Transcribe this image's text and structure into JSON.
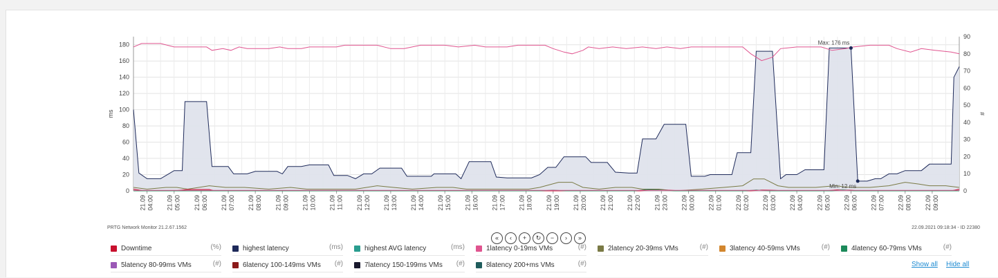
{
  "chart_data": {
    "type": "line",
    "x": [
      "21.09 04:00",
      "21.09 05:00",
      "21.09 06:00",
      "21.09 07:00",
      "21.09 08:00",
      "21.09 09:00",
      "21.09 10:00",
      "21.09 11:00",
      "21.09 12:00",
      "21.09 13:00",
      "21.09 14:00",
      "21.09 15:00",
      "21.09 16:00",
      "21.09 17:00",
      "21.09 18:00",
      "21.09 19:00",
      "21.09 20:00",
      "21.09 21:00",
      "21.09 22:00",
      "21.09 23:00",
      "22.09 00:00",
      "22.09 01:00",
      "22.09 02:00",
      "22.09 03:00",
      "22.09 04:00",
      "22.09 05:00",
      "22.09 06:00",
      "22.09 07:00",
      "22.09 08:00",
      "22.09 09:00"
    ],
    "y_left": {
      "label": "ms",
      "ylim": [
        0,
        190
      ],
      "ticks": [
        0,
        20,
        40,
        60,
        80,
        100,
        120,
        140,
        160,
        180
      ]
    },
    "y_right": {
      "label": "#",
      "ylim": [
        0,
        90
      ],
      "ticks": [
        0,
        10,
        20,
        30,
        40,
        50,
        60,
        70,
        80,
        90
      ]
    },
    "grid": true,
    "series": [
      {
        "name": "highest latency",
        "axis": "left",
        "color": "#1e2a5a",
        "fill": "#dfe3ec",
        "points": [
          [
            0.0,
            100
          ],
          [
            0.2,
            22
          ],
          [
            0.5,
            15
          ],
          [
            1.0,
            15
          ],
          [
            1.3,
            21
          ],
          [
            1.5,
            25
          ],
          [
            1.8,
            25
          ],
          [
            1.9,
            110
          ],
          [
            2.7,
            110
          ],
          [
            2.9,
            30
          ],
          [
            3.5,
            30
          ],
          [
            3.7,
            21
          ],
          [
            4.2,
            21
          ],
          [
            4.5,
            24
          ],
          [
            5.3,
            24
          ],
          [
            5.5,
            21
          ],
          [
            5.7,
            30
          ],
          [
            6.2,
            30
          ],
          [
            6.5,
            32
          ],
          [
            7.2,
            32
          ],
          [
            7.4,
            19
          ],
          [
            7.9,
            19
          ],
          [
            8.2,
            15
          ],
          [
            8.5,
            21
          ],
          [
            8.8,
            21
          ],
          [
            9.1,
            28
          ],
          [
            9.9,
            28
          ],
          [
            10.1,
            18
          ],
          [
            11.0,
            18
          ],
          [
            11.1,
            21
          ],
          [
            11.9,
            21
          ],
          [
            12.1,
            15
          ],
          [
            12.4,
            36
          ],
          [
            13.2,
            36
          ],
          [
            13.4,
            17
          ],
          [
            13.8,
            16
          ],
          [
            14.7,
            16
          ],
          [
            15.0,
            20
          ],
          [
            15.3,
            29
          ],
          [
            15.6,
            29
          ],
          [
            15.9,
            42
          ],
          [
            16.7,
            42
          ],
          [
            16.9,
            35
          ],
          [
            17.5,
            35
          ],
          [
            17.8,
            23
          ],
          [
            18.3,
            22
          ],
          [
            18.6,
            22
          ],
          [
            18.8,
            64
          ],
          [
            19.3,
            64
          ],
          [
            19.6,
            82
          ],
          [
            20.4,
            82
          ],
          [
            20.6,
            18
          ],
          [
            21.1,
            18
          ],
          [
            21.3,
            20
          ],
          [
            22.1,
            20
          ],
          [
            22.3,
            47
          ],
          [
            22.8,
            47
          ],
          [
            23.0,
            172
          ],
          [
            23.6,
            172
          ],
          [
            23.9,
            15
          ],
          [
            24.1,
            20
          ],
          [
            24.5,
            20
          ],
          [
            24.8,
            26
          ],
          [
            25.5,
            26
          ],
          [
            25.7,
            176
          ],
          [
            26.5,
            176
          ],
          [
            26.75,
            12
          ],
          [
            27.1,
            12
          ],
          [
            27.4,
            15
          ],
          [
            27.6,
            15
          ],
          [
            27.9,
            21
          ],
          [
            28.2,
            21
          ],
          [
            28.5,
            25
          ],
          [
            29.1,
            25
          ],
          [
            29.4,
            33
          ],
          [
            30.2,
            33
          ],
          [
            30.3,
            140
          ],
          [
            30.5,
            153
          ]
        ]
      },
      {
        "name": "highest AVG latency",
        "axis": "right",
        "color": "#e0548f",
        "points": [
          [
            0.0,
            84
          ],
          [
            0.3,
            86
          ],
          [
            1.0,
            86
          ],
          [
            1.5,
            84
          ],
          [
            2.7,
            84
          ],
          [
            2.9,
            82
          ],
          [
            3.3,
            83
          ],
          [
            3.6,
            82
          ],
          [
            3.9,
            84
          ],
          [
            4.2,
            83
          ],
          [
            5.0,
            83
          ],
          [
            5.4,
            84
          ],
          [
            5.7,
            83
          ],
          [
            6.2,
            83
          ],
          [
            6.5,
            84
          ],
          [
            7.5,
            84
          ],
          [
            7.8,
            85
          ],
          [
            9.0,
            85
          ],
          [
            9.5,
            83
          ],
          [
            10.0,
            83
          ],
          [
            10.6,
            85
          ],
          [
            11.5,
            85
          ],
          [
            12.0,
            84
          ],
          [
            12.6,
            85
          ],
          [
            13.0,
            84
          ],
          [
            13.8,
            84
          ],
          [
            14.2,
            85
          ],
          [
            15.2,
            85
          ],
          [
            15.5,
            83
          ],
          [
            15.9,
            81
          ],
          [
            16.2,
            80
          ],
          [
            16.6,
            82
          ],
          [
            16.8,
            84
          ],
          [
            17.2,
            83
          ],
          [
            17.7,
            84
          ],
          [
            18.2,
            83
          ],
          [
            18.8,
            84
          ],
          [
            19.3,
            83
          ],
          [
            19.7,
            84
          ],
          [
            20.2,
            83
          ],
          [
            20.6,
            84
          ],
          [
            21.3,
            84
          ],
          [
            21.9,
            84
          ],
          [
            22.5,
            84
          ],
          [
            22.8,
            80
          ],
          [
            23.2,
            76
          ],
          [
            23.6,
            78
          ],
          [
            23.9,
            83
          ],
          [
            24.5,
            84
          ],
          [
            25.4,
            84
          ],
          [
            25.8,
            82
          ],
          [
            26.3,
            83
          ],
          [
            26.6,
            84
          ],
          [
            27.2,
            85
          ],
          [
            27.9,
            85
          ],
          [
            28.2,
            83
          ],
          [
            28.7,
            81
          ],
          [
            29.1,
            83
          ],
          [
            29.6,
            82
          ],
          [
            30.2,
            81
          ],
          [
            30.5,
            80
          ]
        ]
      },
      {
        "name": "2latency 20-39ms VMs",
        "axis": "right",
        "color": "#7a7a45",
        "points": [
          [
            0.0,
            2
          ],
          [
            0.5,
            1
          ],
          [
            1.2,
            2
          ],
          [
            1.6,
            2
          ],
          [
            2.0,
            1
          ],
          [
            2.8,
            3
          ],
          [
            3.4,
            2
          ],
          [
            4.1,
            2
          ],
          [
            5.0,
            1
          ],
          [
            5.8,
            2
          ],
          [
            6.4,
            1
          ],
          [
            7.2,
            1
          ],
          [
            8.2,
            1
          ],
          [
            9.0,
            3
          ],
          [
            9.6,
            2
          ],
          [
            10.3,
            1
          ],
          [
            11.2,
            2
          ],
          [
            11.8,
            2
          ],
          [
            12.3,
            1
          ],
          [
            13.1,
            1
          ],
          [
            13.8,
            1
          ],
          [
            14.6,
            1
          ],
          [
            15.0,
            2
          ],
          [
            15.7,
            5
          ],
          [
            16.2,
            5
          ],
          [
            16.6,
            2
          ],
          [
            17.2,
            1
          ],
          [
            17.8,
            2
          ],
          [
            18.4,
            2
          ],
          [
            18.8,
            1
          ],
          [
            19.4,
            1
          ],
          [
            20.0,
            0
          ],
          [
            21.0,
            1
          ],
          [
            21.8,
            2
          ],
          [
            22.5,
            3
          ],
          [
            22.9,
            7
          ],
          [
            23.3,
            7
          ],
          [
            23.8,
            3
          ],
          [
            24.2,
            2
          ],
          [
            24.7,
            2
          ],
          [
            25.2,
            2
          ],
          [
            25.9,
            3
          ],
          [
            26.5,
            2
          ],
          [
            27.2,
            2
          ],
          [
            27.9,
            3
          ],
          [
            28.5,
            5
          ],
          [
            29.0,
            4
          ],
          [
            29.4,
            3
          ],
          [
            30.0,
            3
          ],
          [
            30.5,
            2
          ]
        ]
      },
      {
        "name": "Downtime",
        "axis": "right",
        "color": "#c8102e",
        "points": [
          [
            0.0,
            1
          ],
          [
            0.4,
            0
          ],
          [
            1.5,
            0
          ],
          [
            2.0,
            0.8
          ],
          [
            2.8,
            0.8
          ],
          [
            3.0,
            0
          ],
          [
            18.7,
            0
          ],
          [
            19.2,
            0.6
          ],
          [
            19.8,
            0.4
          ],
          [
            20.2,
            0
          ],
          [
            22.8,
            0
          ],
          [
            23.2,
            0.5
          ],
          [
            23.6,
            0.4
          ],
          [
            24.0,
            0
          ],
          [
            25.5,
            0
          ],
          [
            26.0,
            0.6
          ],
          [
            26.5,
            0.4
          ],
          [
            26.8,
            0
          ],
          [
            30.2,
            0
          ],
          [
            30.5,
            1
          ]
        ]
      },
      {
        "name": "4latency 60-79ms VMs",
        "axis": "right",
        "color": "#1c8a5a",
        "points": [
          [
            0.0,
            0
          ],
          [
            15.0,
            0
          ],
          [
            15.5,
            0.4
          ],
          [
            16.0,
            0
          ],
          [
            18.5,
            0
          ],
          [
            19.0,
            0.8
          ],
          [
            19.5,
            0.5
          ],
          [
            20.0,
            0
          ],
          [
            22.6,
            0
          ],
          [
            23.0,
            0.5
          ],
          [
            23.5,
            0
          ],
          [
            25.8,
            0
          ],
          [
            26.2,
            0.6
          ],
          [
            26.6,
            0
          ],
          [
            30.5,
            0
          ]
        ]
      },
      {
        "name": "1latency 0-19ms VMs",
        "axis": "right",
        "color": "#e0548f",
        "points": [
          [
            0.0,
            0.3
          ],
          [
            30.5,
            0.3
          ]
        ]
      }
    ],
    "annotations": [
      {
        "text": "Max: 176 ms",
        "x": 26.5,
        "y": 176,
        "axis": "left"
      },
      {
        "text": "Min: 12 ms",
        "x": 26.75,
        "y": 12,
        "axis": "left"
      }
    ]
  },
  "footer": {
    "left": "PRTG Network Monitor 21.2.67.1562",
    "right": "22.09.2021 09:18:34 - ID 22380"
  },
  "nav": {
    "buttons": [
      {
        "name": "nav-first-button",
        "label": "«"
      },
      {
        "name": "nav-prev-button",
        "label": "‹"
      },
      {
        "name": "nav-zoom-in-button",
        "label": "+"
      },
      {
        "name": "nav-reset-button",
        "label": "↻"
      },
      {
        "name": "nav-zoom-out-button",
        "label": "−"
      },
      {
        "name": "nav-next-button",
        "label": "›"
      },
      {
        "name": "nav-last-button",
        "label": "»"
      }
    ]
  },
  "legend": {
    "items": [
      {
        "label": "Downtime",
        "unit": "(%)",
        "color": "#c8102e"
      },
      {
        "label": "highest latency",
        "unit": "(ms)",
        "color": "#1e2a5a"
      },
      {
        "label": "highest AVG latency",
        "unit": "(ms)",
        "color": "#2a9d8f"
      },
      {
        "label": "1latency 0-19ms VMs",
        "unit": "(#)",
        "color": "#e0548f"
      },
      {
        "label": "2latency 20-39ms VMs",
        "unit": "(#)",
        "color": "#7a7a45"
      },
      {
        "label": "3latency 40-59ms VMs",
        "unit": "(#)",
        "color": "#d2862e"
      },
      {
        "label": "4latency 60-79ms VMs",
        "unit": "(#)",
        "color": "#1c8a5a"
      },
      {
        "label": "5latency 80-99ms VMs",
        "unit": "(#)",
        "color": "#9b59b6"
      },
      {
        "label": "6latency 100-149ms VMs",
        "unit": "(#)",
        "color": "#8b1a1a"
      },
      {
        "label": "7latency 150-199ms VMs",
        "unit": "(#)",
        "color": "#1a1a2e"
      },
      {
        "label": "8latency 200+ms VMs",
        "unit": "(#)",
        "color": "#1f5c5c"
      }
    ],
    "show_all": "Show all",
    "hide_all": "Hide all"
  }
}
